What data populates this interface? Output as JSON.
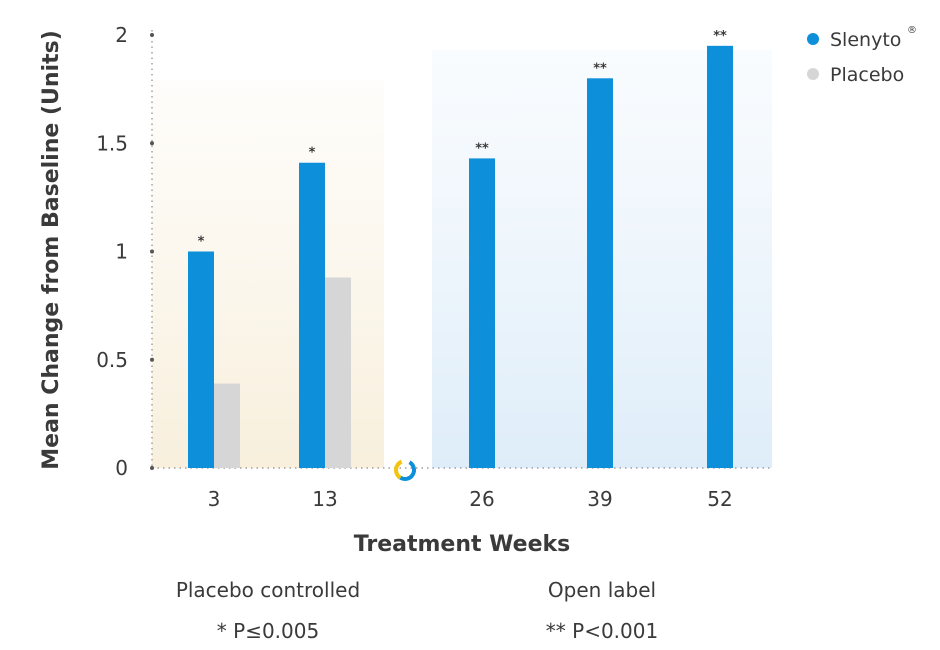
{
  "chart_data": {
    "type": "bar",
    "xlabel": "Treatment Weeks",
    "ylabel": "Mean Change from Baseline (Units)",
    "ylim": [
      0,
      2
    ],
    "yticks": [
      "0",
      "0.5",
      "1",
      "1.5",
      "2"
    ],
    "categories": [
      "3",
      "13",
      "26",
      "39",
      "52"
    ],
    "series": [
      {
        "name": "Slenyto",
        "color": "#0d8fd9",
        "values": [
          1.0,
          1.41,
          1.43,
          1.8,
          1.95
        ],
        "labels": [
          "*",
          "*",
          "**",
          "**",
          "**"
        ]
      },
      {
        "name": "Placebo",
        "color": "#d6d6d6",
        "values": [
          0.39,
          0.88,
          null,
          null,
          null
        ]
      }
    ],
    "legend": {
      "position": "top-right",
      "slenyto_mark": "®"
    },
    "phases": [
      {
        "label": "Placebo controlled",
        "note": "* P≤0.005"
      },
      {
        "label": "Open label",
        "note": "** P<0.001"
      }
    ],
    "grid": false
  }
}
